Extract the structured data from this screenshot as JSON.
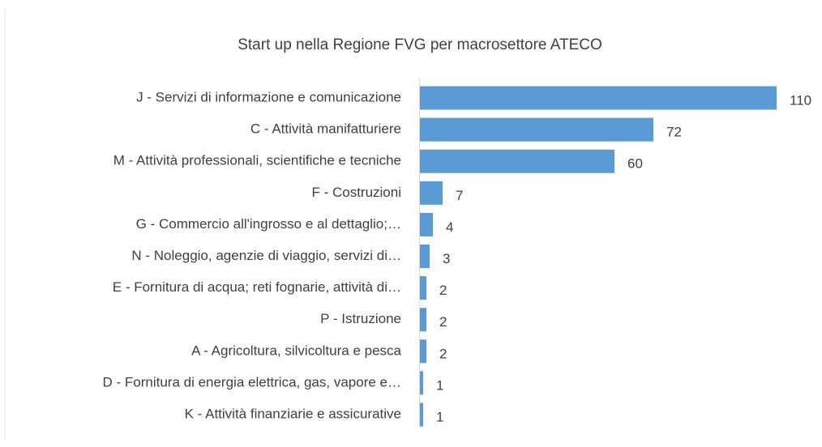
{
  "chart_data": {
    "type": "barh",
    "title": "Start up nella Regione FVG per macrosettore ATECO",
    "categories": [
      "J - Servizi di informazione e comunicazione",
      "C - Attività manifatturiere",
      "M - Attività professionali, scientifiche e tecniche",
      "F - Costruzioni",
      "G - Commercio all'ingrosso e al dettaglio;…",
      "N - Noleggio, agenzie di viaggio, servizi di…",
      "E - Fornitura di acqua; reti fognarie, attività di…",
      "P - Istruzione",
      "A - Agricoltura, silvicoltura e pesca",
      "D - Fornitura di energia elettrica, gas, vapore e…",
      "K - Attività finanziarie e assicurative"
    ],
    "values": [
      110,
      72,
      60,
      7,
      4,
      3,
      2,
      2,
      2,
      1,
      1
    ],
    "color": "#5b9bd5"
  }
}
